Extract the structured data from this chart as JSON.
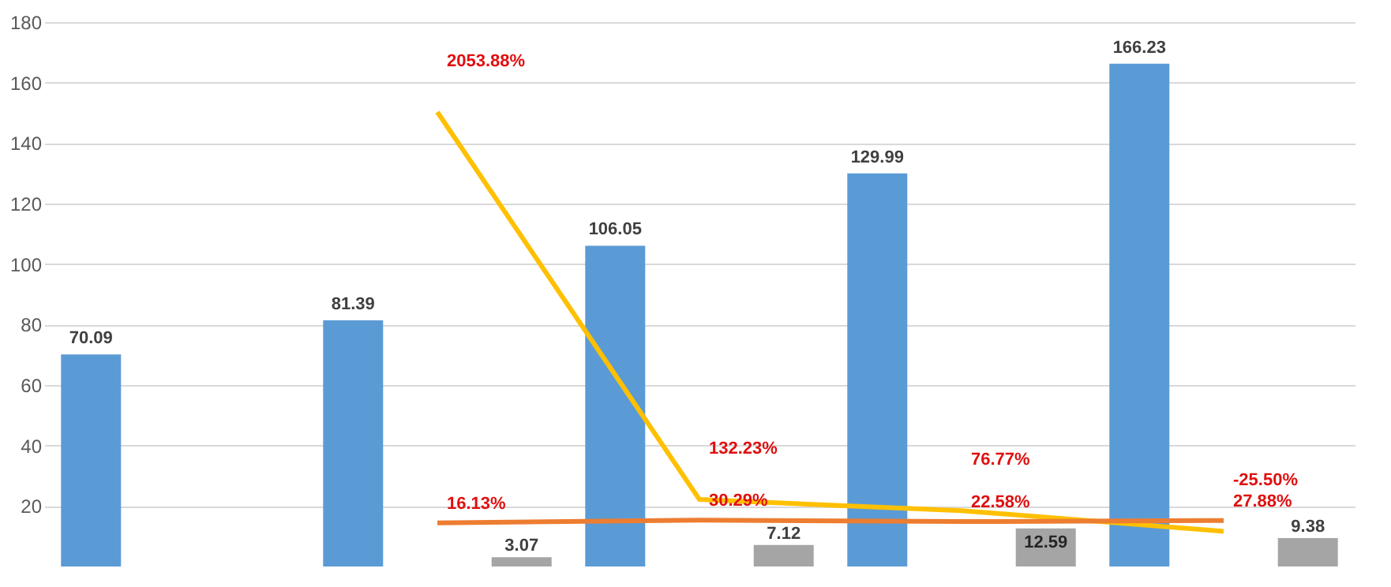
{
  "chart_data": {
    "type": "bar",
    "categories": [
      null,
      null,
      null,
      null,
      null
    ],
    "series": [
      {
        "color": "#5b9bd5",
        "values": [
          70.09,
          81.39,
          106.05,
          129.99,
          166.23
        ],
        "value_labels": [
          "70.09",
          "81.39",
          "106.05",
          "129.99",
          "166.23"
        ]
      },
      {
        "color": "#a5a5a5",
        "values": [
          null,
          3.07,
          7.12,
          12.59,
          9.38
        ],
        "value_labels": [
          null,
          "3.07",
          "7.12",
          "12.59",
          "9.38"
        ]
      },
      {
        "type": "line",
        "axis": "y2",
        "color": "#ffc000",
        "values": [
          null,
          2053.88,
          132.23,
          76.77,
          -25.5
        ],
        "value_labels": [
          null,
          "2053.88%",
          "132.23%",
          "76.77%",
          "-25.50%"
        ]
      },
      {
        "type": "line",
        "axis": "y2",
        "color": "#ed7d31",
        "values": [
          null,
          16.13,
          30.29,
          22.58,
          27.88
        ],
        "value_labels": [
          null,
          "16.13%",
          "30.29%",
          "22.58%",
          "27.88%"
        ]
      }
    ],
    "ylim": [
      0,
      180
    ],
    "yticks": [
      20,
      40,
      60,
      80,
      100,
      120,
      140,
      160,
      180
    ],
    "y2lim": [
      -200,
      2500
    ],
    "grid": "y",
    "tick_labels": "y"
  }
}
